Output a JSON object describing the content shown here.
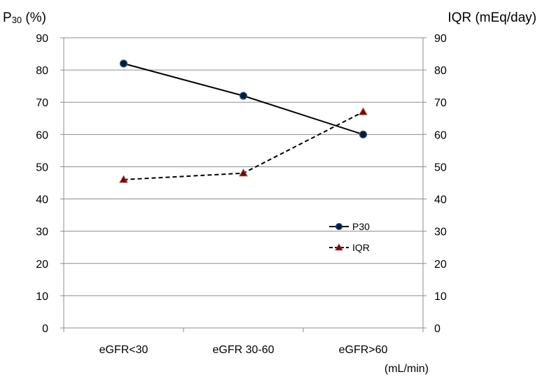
{
  "chart_data": {
    "type": "line",
    "categories": [
      "eGFR<30",
      "eGFR 30-60",
      "eGFR>60"
    ],
    "x_unit_label": "(mL/min)",
    "y_left": {
      "label_main": "P",
      "label_sub": "30",
      "label_rest": " (%)",
      "lim": [
        0,
        90
      ],
      "ticks": [
        0,
        10,
        20,
        30,
        40,
        50,
        60,
        70,
        80,
        90
      ]
    },
    "y_right": {
      "label": "IQR (mEq/day)",
      "lim": [
        0,
        90
      ],
      "ticks": [
        0,
        10,
        20,
        30,
        40,
        50,
        60,
        70,
        80,
        90
      ]
    },
    "grid": true,
    "legend_position": "center-right",
    "series": [
      {
        "name": "P30",
        "values": [
          82,
          72,
          60
        ],
        "axis": "left",
        "line_style": "solid",
        "marker": "circle",
        "line_color": "#000000",
        "marker_fill": "#0d1b2e"
      },
      {
        "name": "IQR",
        "values": [
          46,
          48,
          67
        ],
        "axis": "right",
        "line_style": "dashed",
        "marker": "triangle",
        "line_color": "#000000",
        "marker_fill": "#5a1010"
      }
    ]
  }
}
